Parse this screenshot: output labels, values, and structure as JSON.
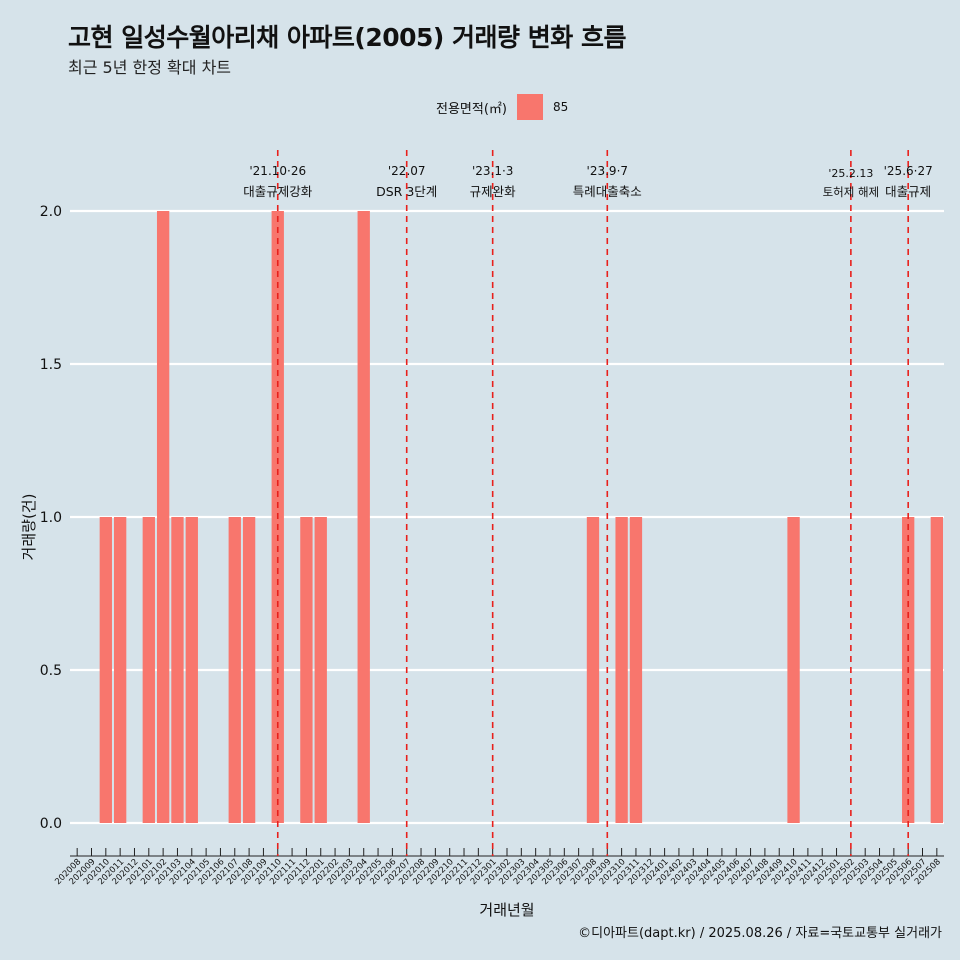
{
  "title": "고현 일성수월아리채 아파트(2005) 거래량 변화 흐름",
  "subtitle": "최근 5년 한정 확대 차트",
  "legend": {
    "title": "전용면적(㎡)",
    "label": "85",
    "color": "#f8766d"
  },
  "caption": "©디아파트(dapt.kr) / 2025.08.26 / 자료=국토교통부 실거래가",
  "chart_data": {
    "type": "bar",
    "xlabel": "거래년월",
    "ylabel": "거래량(건)",
    "ylim": [
      0,
      2
    ],
    "yticks": [
      "0.0",
      "0.5",
      "1.0",
      "1.5",
      "2.0"
    ],
    "bar_color": "#f8766d",
    "categories": [
      "202008",
      "202009",
      "202010",
      "202011",
      "202012",
      "202101",
      "202102",
      "202103",
      "202104",
      "202105",
      "202106",
      "202107",
      "202108",
      "202109",
      "202110",
      "202111",
      "202112",
      "202201",
      "202202",
      "202203",
      "202204",
      "202205",
      "202206",
      "202207",
      "202208",
      "202209",
      "202210",
      "202211",
      "202212",
      "202301",
      "202302",
      "202303",
      "202304",
      "202305",
      "202306",
      "202307",
      "202308",
      "202309",
      "202310",
      "202311",
      "202312",
      "202401",
      "202402",
      "202403",
      "202404",
      "202405",
      "202406",
      "202407",
      "202408",
      "202409",
      "202410",
      "202411",
      "202412",
      "202501",
      "202502",
      "202503",
      "202504",
      "202505",
      "202506",
      "202507",
      "202508"
    ],
    "values": [
      0,
      0,
      1,
      1,
      0,
      1,
      2,
      1,
      1,
      0,
      0,
      1,
      1,
      0,
      2,
      0,
      1,
      1,
      0,
      0,
      2,
      0,
      0,
      0,
      0,
      0,
      0,
      0,
      0,
      0,
      0,
      0,
      0,
      0,
      0,
      0,
      1,
      0,
      1,
      1,
      0,
      0,
      0,
      0,
      0,
      0,
      0,
      0,
      0,
      0,
      1,
      0,
      0,
      0,
      0,
      0,
      0,
      0,
      1,
      0,
      1
    ],
    "annotations": [
      {
        "at": "202110",
        "date": "'21.10·26",
        "label": "대출규제강화"
      },
      {
        "at": "202207",
        "date": "'22.07",
        "label": "DSR 3단계"
      },
      {
        "at": "202301",
        "date": "'23.1·3",
        "label": "규제완화"
      },
      {
        "at": "202309",
        "date": "'23.9·7",
        "label": "특례대출축소"
      },
      {
        "at": "202502",
        "date": "'25.2.13",
        "label": "토허제 해제"
      },
      {
        "at": "202506",
        "date": "'25.6·27",
        "label": "대출규제"
      }
    ]
  }
}
